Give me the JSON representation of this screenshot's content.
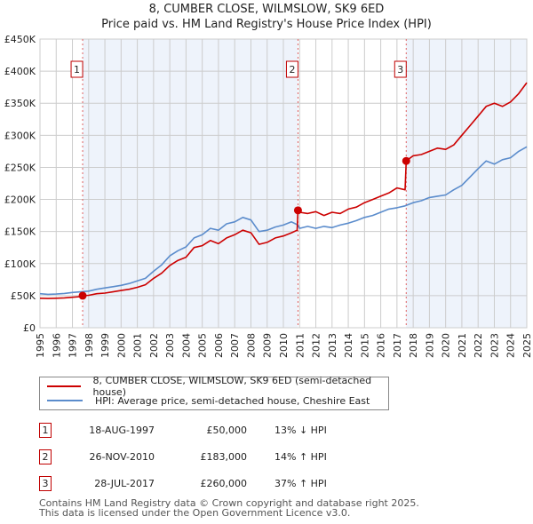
{
  "title": {
    "line1": "8, CUMBER CLOSE, WILMSLOW, SK9 6ED",
    "line2": "Price paid vs. HM Land Registry's House Price Index (HPI)"
  },
  "colors": {
    "property": "#cc0000",
    "hpi": "#5b8ccc",
    "shade": "#eef3fb",
    "grid": "#cccccc",
    "marker_border": "#c00000",
    "vline": "#e06060"
  },
  "legend": {
    "items": [
      {
        "label": "8, CUMBER CLOSE, WILMSLOW, SK9 6ED (semi-detached house)",
        "color": "#cc0000"
      },
      {
        "label": "HPI: Average price, semi-detached house, Cheshire East",
        "color": "#5b8ccc"
      }
    ]
  },
  "sales": [
    {
      "num": "1",
      "date": "18-AUG-1997",
      "price": "£50,000",
      "hpi": "13% ↓ HPI"
    },
    {
      "num": "2",
      "date": "26-NOV-2010",
      "price": "£183,000",
      "hpi": "14% ↑ HPI"
    },
    {
      "num": "3",
      "date": "28-JUL-2017",
      "price": "£260,000",
      "hpi": "37% ↑ HPI"
    }
  ],
  "footer": {
    "line1": "Contains HM Land Registry data © Crown copyright and database right 2025.",
    "line2": "This data is licensed under the Open Government Licence v3.0."
  },
  "chart_data": {
    "type": "line",
    "title": "8, CUMBER CLOSE, WILMSLOW, SK9 6ED — Price paid vs. HM Land Registry's House Price Index (HPI)",
    "xlabel": "",
    "ylabel": "",
    "xlim": [
      1995,
      2025
    ],
    "ylim": [
      0,
      450000
    ],
    "grid": true,
    "legend_position": "below",
    "x_ticks": [
      "1995",
      "1996",
      "1997",
      "1998",
      "1999",
      "2000",
      "2001",
      "2002",
      "2003",
      "2004",
      "2005",
      "2006",
      "2007",
      "2008",
      "2009",
      "2010",
      "2011",
      "2012",
      "2013",
      "2014",
      "2015",
      "2016",
      "2017",
      "2018",
      "2019",
      "2020",
      "2021",
      "2022",
      "2023",
      "2024",
      "2025"
    ],
    "y_ticks": [
      {
        "value": 0,
        "label": "£0"
      },
      {
        "value": 50000,
        "label": "£50K"
      },
      {
        "value": 100000,
        "label": "£100K"
      },
      {
        "value": 150000,
        "label": "£150K"
      },
      {
        "value": 200000,
        "label": "£200K"
      },
      {
        "value": 250000,
        "label": "£250K"
      },
      {
        "value": 300000,
        "label": "£300K"
      },
      {
        "value": 350000,
        "label": "£350K"
      },
      {
        "value": 400000,
        "label": "£400K"
      },
      {
        "value": 450000,
        "label": "£450K"
      }
    ],
    "shaded_ranges": [
      [
        1997.63,
        2010.9
      ],
      [
        2017.57,
        2025
      ]
    ],
    "sale_markers": [
      {
        "label": "1",
        "x": 1997.63,
        "y": 50000
      },
      {
        "label": "2",
        "x": 2010.9,
        "y": 183000
      },
      {
        "label": "3",
        "x": 2017.57,
        "y": 260000
      }
    ],
    "series": [
      {
        "name": "8, CUMBER CLOSE, WILMSLOW, SK9 6ED (semi-detached house)",
        "color": "#cc0000",
        "x": [
          1995,
          1995.5,
          1996,
          1996.5,
          1997,
          1997.5,
          1997.63,
          1998,
          1998.5,
          1999,
          1999.5,
          2000,
          2000.5,
          2001,
          2001.5,
          2002,
          2002.5,
          2003,
          2003.5,
          2004,
          2004.5,
          2005,
          2005.5,
          2006,
          2006.5,
          2007,
          2007.5,
          2008,
          2008.5,
          2009,
          2009.5,
          2010,
          2010.5,
          2010.85,
          2010.9,
          2011,
          2011.5,
          2012,
          2012.5,
          2013,
          2013.5,
          2014,
          2014.5,
          2015,
          2015.5,
          2016,
          2016.5,
          2017,
          2017.5,
          2017.57,
          2018,
          2018.5,
          2019,
          2019.5,
          2020,
          2020.5,
          2021,
          2021.5,
          2022,
          2022.5,
          2023,
          2023.5,
          2024,
          2024.5,
          2025
        ],
        "y": [
          46000,
          45500,
          46000,
          46500,
          47500,
          48500,
          50000,
          50500,
          53000,
          54000,
          56000,
          58000,
          60000,
          63000,
          67000,
          77000,
          85000,
          97000,
          105000,
          110000,
          125000,
          128000,
          136000,
          131000,
          140000,
          145000,
          152000,
          148000,
          130000,
          133000,
          140000,
          143000,
          148000,
          152000,
          183000,
          180000,
          178000,
          181000,
          175000,
          180000,
          178000,
          185000,
          188000,
          195000,
          200000,
          205000,
          210000,
          218000,
          215000,
          260000,
          268000,
          270000,
          275000,
          280000,
          278000,
          285000,
          300000,
          315000,
          330000,
          345000,
          350000,
          345000,
          352000,
          365000,
          382000
        ]
      },
      {
        "name": "HPI: Average price, semi-detached house, Cheshire East",
        "color": "#5b8ccc",
        "x": [
          1995,
          1995.5,
          1996,
          1996.5,
          1997,
          1997.5,
          1998,
          1998.5,
          1999,
          1999.5,
          2000,
          2000.5,
          2001,
          2001.5,
          2002,
          2002.5,
          2003,
          2003.5,
          2004,
          2004.5,
          2005,
          2005.5,
          2006,
          2006.5,
          2007,
          2007.5,
          2008,
          2008.5,
          2009,
          2009.5,
          2010,
          2010.5,
          2010.9,
          2011,
          2011.5,
          2012,
          2012.5,
          2013,
          2013.5,
          2014,
          2014.5,
          2015,
          2015.5,
          2016,
          2016.5,
          2017,
          2017.5,
          2018,
          2018.5,
          2019,
          2019.5,
          2020,
          2020.5,
          2021,
          2021.5,
          2022,
          2022.5,
          2023,
          2023.5,
          2024,
          2024.5,
          2025
        ],
        "y": [
          53000,
          52000,
          52500,
          53500,
          55000,
          56000,
          57000,
          60000,
          62000,
          64000,
          66000,
          69000,
          73000,
          77000,
          88000,
          98000,
          112000,
          120000,
          126000,
          140000,
          145000,
          155000,
          152000,
          162000,
          165000,
          172000,
          168000,
          150000,
          152000,
          157000,
          160000,
          165000,
          160000,
          155000,
          158000,
          155000,
          158000,
          156000,
          160000,
          163000,
          167000,
          172000,
          175000,
          180000,
          185000,
          187000,
          190000,
          195000,
          198000,
          203000,
          205000,
          207000,
          215000,
          222000,
          235000,
          248000,
          260000,
          255000,
          262000,
          265000,
          275000,
          282000
        ]
      }
    ]
  }
}
